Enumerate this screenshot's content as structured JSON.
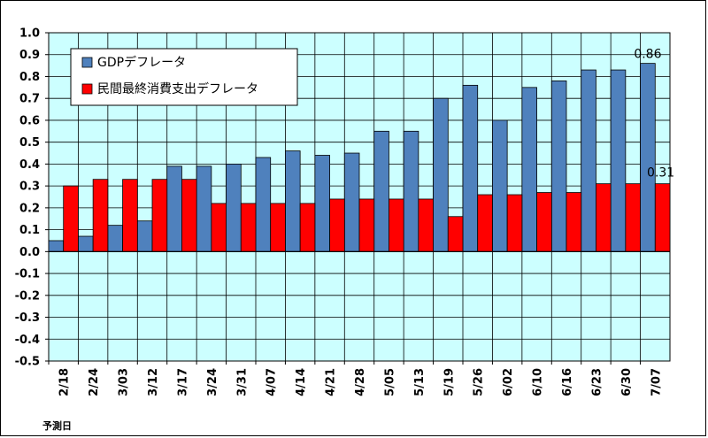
{
  "chart_data": {
    "type": "bar",
    "title": "",
    "xlabel": "予測日",
    "ylabel": "",
    "ylim": [
      -0.5,
      1.0
    ],
    "yticks": [
      "1.0",
      "0.9",
      "0.8",
      "0.7",
      "0.6",
      "0.5",
      "0.4",
      "0.3",
      "0.2",
      "0.1",
      "0.0",
      "-0.1",
      "-0.2",
      "-0.3",
      "-0.4",
      "-0.5"
    ],
    "grid": true,
    "legend_position": "top-left",
    "plot_background": "#ccffff",
    "categories": [
      "2/18",
      "2/24",
      "3/03",
      "3/12",
      "3/17",
      "3/24",
      "3/31",
      "4/07",
      "4/14",
      "4/21",
      "4/28",
      "5/05",
      "5/13",
      "5/19",
      "5/26",
      "6/02",
      "6/10",
      "6/16",
      "6/23",
      "6/30",
      "7/07"
    ],
    "series": [
      {
        "name": "GDPデフレータ",
        "color": "#4f81bd",
        "values": [
          0.05,
          0.07,
          0.12,
          0.14,
          0.39,
          0.39,
          0.4,
          0.43,
          0.46,
          0.44,
          0.45,
          0.55,
          0.55,
          0.7,
          0.76,
          0.6,
          0.75,
          0.78,
          0.83,
          0.83,
          0.86
        ]
      },
      {
        "name": "民間最終消費支出デフレータ",
        "color": "#ff0000",
        "values": [
          0.3,
          0.33,
          0.33,
          0.33,
          0.33,
          0.22,
          0.22,
          0.22,
          0.22,
          0.24,
          0.24,
          0.24,
          0.24,
          0.16,
          0.26,
          0.26,
          0.27,
          0.27,
          0.31,
          0.31,
          0.31
        ]
      }
    ],
    "annotations": [
      "0.86",
      "0.31"
    ]
  }
}
